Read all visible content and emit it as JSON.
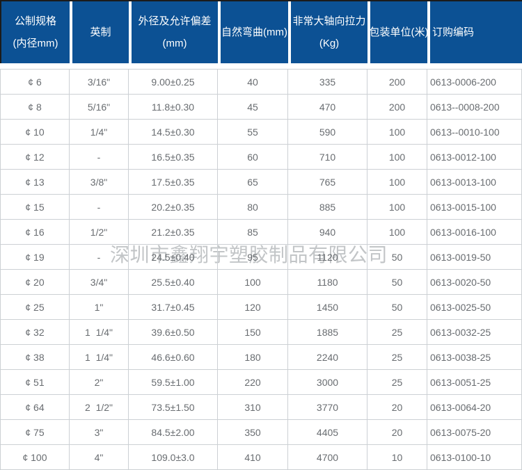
{
  "company_watermark": "深圳市鑫翔宇塑胶制品有限公司",
  "colors": {
    "header_bg": "#0c5194",
    "header_text": "#ffffff",
    "body_text": "#686c70",
    "border": "#ccd0d4"
  },
  "table": {
    "headers": [
      {
        "lines": [
          "公制规格",
          "(内径mm)"
        ]
      },
      {
        "lines": [
          "英制"
        ]
      },
      {
        "lines": [
          "外径及允许偏差",
          "(mm)"
        ]
      },
      {
        "lines": [
          "自然弯曲(mm)"
        ]
      },
      {
        "lines": [
          "非常大轴向拉力",
          "(Kg)"
        ]
      },
      {
        "lines": [
          "包装单位(米)"
        ]
      },
      {
        "lines": [
          "订购编码"
        ]
      }
    ]
  },
  "chart_data": {
    "type": "table",
    "columns": [
      "公制规格(内径mm)",
      "英制",
      "外径及允许偏差(mm)",
      "自然弯曲(mm)",
      "非常大轴向拉力(Kg)",
      "包装单位(米)",
      "订购编码"
    ],
    "rows": [
      [
        "¢ 6",
        "3/16\"",
        "9.00±0.25",
        "40",
        "335",
        "200",
        "0613-0006-200"
      ],
      [
        "¢ 8",
        "5/16\"",
        "11.8±0.30",
        "45",
        "470",
        "200",
        "0613--0008-200"
      ],
      [
        "¢ 10",
        "1/4\"",
        "14.5±0.30",
        "55",
        "590",
        "100",
        "0613--0010-100"
      ],
      [
        "¢ 12",
        "-",
        "16.5±0.35",
        "60",
        "710",
        "100",
        "0613-0012-100"
      ],
      [
        "¢ 13",
        "3/8\"",
        "17.5±0.35",
        "65",
        "765",
        "100",
        "0613-0013-100"
      ],
      [
        "¢ 15",
        "-",
        "20.2±0.35",
        "80",
        "885",
        "100",
        "0613-0015-100"
      ],
      [
        "¢ 16",
        "1/2\"",
        "21.2±0.35",
        "85",
        "940",
        "100",
        "0613-0016-100"
      ],
      [
        "¢ 19",
        "-",
        "24.5±0.40",
        "95",
        "1120",
        "50",
        "0613-0019-50"
      ],
      [
        "¢ 20",
        "3/4\"",
        "25.5±0.40",
        "100",
        "1180",
        "50",
        "0613-0020-50"
      ],
      [
        "¢ 25",
        "1\"",
        "31.7±0.45",
        "120",
        "1450",
        "50",
        "0613-0025-50"
      ],
      [
        "¢ 32",
        "1  1/4\"",
        "39.6±0.50",
        "150",
        "1885",
        "25",
        "0613-0032-25"
      ],
      [
        "¢ 38",
        "1  1/4\"",
        "46.6±0.60",
        "180",
        "2240",
        "25",
        "0613-0038-25"
      ],
      [
        "¢ 51",
        "2\"",
        "59.5±1.00",
        "220",
        "3000",
        "25",
        "0613-0051-25"
      ],
      [
        "¢ 64",
        "2  1/2\"",
        "73.5±1.50",
        "310",
        "3770",
        "20",
        "0613-0064-20"
      ],
      [
        "¢ 75",
        "3\"",
        "84.5±2.00",
        "350",
        "4405",
        "20",
        "0613-0075-20"
      ],
      [
        "¢ 100",
        "4\"",
        "109.0±3.0",
        "410",
        "4700",
        "10",
        "0613-0100-10"
      ]
    ]
  }
}
